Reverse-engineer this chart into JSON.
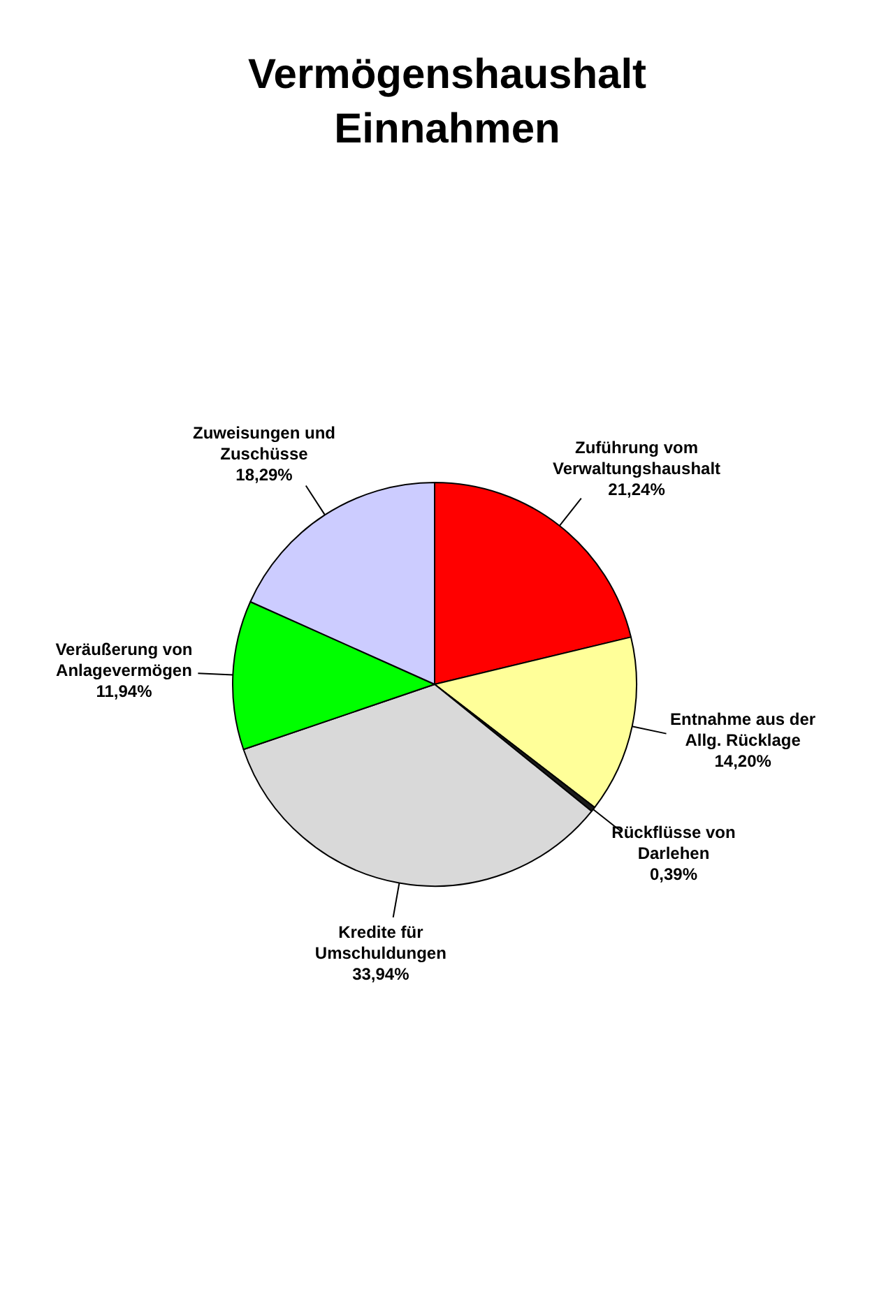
{
  "chart_data": {
    "type": "pie",
    "title": "Vermögenshaushalt Einnahmen",
    "categories": [
      "Zuführung vom Verwaltungshaushalt",
      "Entnahme aus der Allg. Rücklage",
      "Rückflüsse von Darlehen",
      "Kredite für Umschuldungen",
      "Veräußerung von Anlagevermögen",
      "Zuweisungen und Zuschüsse"
    ],
    "values": [
      21.24,
      14.2,
      0.39,
      33.94,
      11.94,
      18.29
    ],
    "colors": [
      "#ff0000",
      "#ffff99",
      "#1a1a1a",
      "#d9d9d9",
      "#00ff00",
      "#ccccff"
    ],
    "value_labels": [
      "21,24%",
      "14,20%",
      "0,39%",
      "33,94%",
      "11,94%",
      "18,29%"
    ],
    "legend": false
  }
}
